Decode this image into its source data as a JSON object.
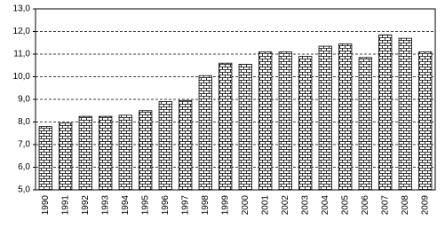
{
  "chart_data": {
    "type": "bar",
    "categories": [
      "1990",
      "1991",
      "1992",
      "1993",
      "1994",
      "1995",
      "1996",
      "1997",
      "1998",
      "1999",
      "2000",
      "2001",
      "2002",
      "2003",
      "2004",
      "2005",
      "2006",
      "2007",
      "2008",
      "2009"
    ],
    "values": [
      7.8,
      7.95,
      8.25,
      8.25,
      8.3,
      8.5,
      8.9,
      8.95,
      10.05,
      10.6,
      10.55,
      11.1,
      11.1,
      10.9,
      11.35,
      11.45,
      10.85,
      11.85,
      11.7,
      11.1
    ],
    "ylim": [
      5,
      13
    ],
    "yticks": [
      {
        "value": 5,
        "label": "5,0"
      },
      {
        "value": 6,
        "label": "6,0"
      },
      {
        "value": 7,
        "label": "7,0"
      },
      {
        "value": 8,
        "label": "8,0"
      },
      {
        "value": 9,
        "label": "9,0"
      },
      {
        "value": 10,
        "label": "10,0"
      },
      {
        "value": 11,
        "label": "11,0"
      },
      {
        "value": 12,
        "label": "12,0"
      },
      {
        "value": 13,
        "label": "13,0"
      }
    ],
    "grid": true
  }
}
